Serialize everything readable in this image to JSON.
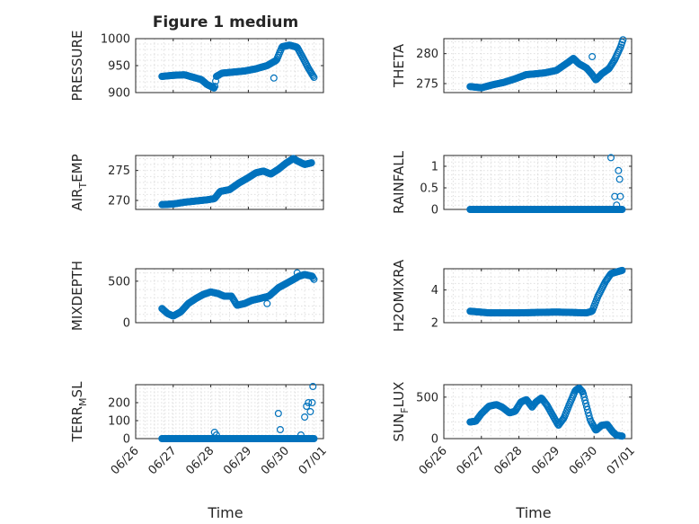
{
  "figure": {
    "title": "Figure 1 medium",
    "xlabel": "Time",
    "marker_color": "#0072bd",
    "grid_color": "#dfdfdf"
  },
  "x_axis": {
    "type": "time",
    "range": [
      "06/26",
      "07/01"
    ],
    "ticks": [
      "06/26",
      "06/27",
      "06/28",
      "06/29",
      "06/30",
      "07/01"
    ],
    "tick_values": [
      0,
      1,
      2,
      3,
      4,
      5
    ],
    "data_start_day": 0.7,
    "data_end_day": 4.75,
    "rotation_deg": -45
  },
  "chart_data": [
    {
      "type": "scatter",
      "ylabel": "PRESSURE",
      "title": "Figure 1 medium",
      "ylim": [
        900,
        1000
      ],
      "yticks": [
        900,
        950,
        1000
      ],
      "grid": true,
      "trend": [
        [
          0.7,
          930
        ],
        [
          1.0,
          932
        ],
        [
          1.3,
          933
        ],
        [
          1.5,
          929
        ],
        [
          1.75,
          924
        ],
        [
          1.9,
          915
        ],
        [
          2.1,
          908
        ],
        [
          2.15,
          930
        ],
        [
          2.3,
          936
        ],
        [
          2.6,
          938
        ],
        [
          2.9,
          940
        ],
        [
          3.2,
          944
        ],
        [
          3.5,
          950
        ],
        [
          3.75,
          960
        ],
        [
          3.9,
          985
        ],
        [
          4.1,
          988
        ],
        [
          4.3,
          984
        ],
        [
          4.45,
          965
        ],
        [
          4.6,
          945
        ],
        [
          4.75,
          928
        ]
      ],
      "outliers": [
        [
          3.68,
          927
        ]
      ]
    },
    {
      "type": "scatter",
      "ylabel": "THETA",
      "ylim": [
        273.5,
        282.5
      ],
      "yticks": [
        275,
        280
      ],
      "grid": true,
      "trend": [
        [
          0.7,
          274.5
        ],
        [
          1.0,
          274.3
        ],
        [
          1.3,
          274.8
        ],
        [
          1.6,
          275.2
        ],
        [
          1.9,
          275.8
        ],
        [
          2.2,
          276.5
        ],
        [
          2.4,
          276.6
        ],
        [
          2.7,
          276.8
        ],
        [
          3.0,
          277.2
        ],
        [
          3.3,
          278.5
        ],
        [
          3.45,
          279.2
        ],
        [
          3.6,
          278.3
        ],
        [
          3.8,
          277.6
        ],
        [
          3.95,
          276.5
        ],
        [
          4.05,
          275.6
        ],
        [
          4.2,
          276.6
        ],
        [
          4.4,
          277.5
        ],
        [
          4.55,
          279.0
        ],
        [
          4.7,
          281.0
        ],
        [
          4.78,
          282.5
        ]
      ],
      "outliers": [
        [
          3.95,
          279.5
        ]
      ]
    },
    {
      "type": "scatter",
      "ylabel": "AIR",
      "ylabel_sub": "T",
      "ylabel_tail": "EMP",
      "ylim": [
        268.5,
        277.5
      ],
      "yticks": [
        270,
        275
      ],
      "grid": true,
      "trend": [
        [
          0.7,
          269.3
        ],
        [
          1.0,
          269.4
        ],
        [
          1.3,
          269.7
        ],
        [
          1.6,
          269.9
        ],
        [
          1.9,
          270.1
        ],
        [
          2.1,
          270.3
        ],
        [
          2.25,
          271.5
        ],
        [
          2.5,
          271.8
        ],
        [
          2.75,
          272.9
        ],
        [
          3.0,
          273.8
        ],
        [
          3.2,
          274.6
        ],
        [
          3.4,
          274.9
        ],
        [
          3.6,
          274.4
        ],
        [
          3.8,
          275.2
        ],
        [
          4.0,
          276.2
        ],
        [
          4.2,
          277.0
        ],
        [
          4.3,
          276.6
        ],
        [
          4.5,
          276.0
        ],
        [
          4.7,
          276.3
        ]
      ],
      "outliers": []
    },
    {
      "type": "scatter",
      "ylabel": "RAINFALL",
      "ylim": [
        0,
        1.25
      ],
      "yticks": [
        0,
        0.5,
        1
      ],
      "grid": true,
      "trend": [
        [
          0.7,
          0
        ],
        [
          4.75,
          0
        ]
      ],
      "outliers": [
        [
          4.45,
          1.2
        ],
        [
          4.55,
          0.3
        ],
        [
          4.6,
          0.1
        ],
        [
          4.65,
          0.9
        ],
        [
          4.68,
          0.7
        ],
        [
          4.7,
          0.3
        ],
        [
          4.6,
          0
        ],
        [
          4.72,
          0
        ]
      ]
    },
    {
      "type": "scatter",
      "ylabel": "MIXDEPTH",
      "ylim": [
        0,
        650
      ],
      "yticks": [
        0,
        500
      ],
      "grid": true,
      "trend": [
        [
          0.7,
          170
        ],
        [
          0.85,
          110
        ],
        [
          1.0,
          80
        ],
        [
          1.2,
          130
        ],
        [
          1.4,
          230
        ],
        [
          1.6,
          290
        ],
        [
          1.8,
          340
        ],
        [
          2.0,
          370
        ],
        [
          2.2,
          350
        ],
        [
          2.35,
          320
        ],
        [
          2.55,
          320
        ],
        [
          2.7,
          210
        ],
        [
          2.9,
          230
        ],
        [
          3.1,
          270
        ],
        [
          3.3,
          290
        ],
        [
          3.55,
          320
        ],
        [
          3.8,
          420
        ],
        [
          4.0,
          470
        ],
        [
          4.2,
          520
        ],
        [
          4.35,
          560
        ],
        [
          4.5,
          580
        ],
        [
          4.7,
          560
        ],
        [
          4.75,
          520
        ]
      ],
      "outliers": [
        [
          3.5,
          230
        ],
        [
          4.3,
          600
        ]
      ]
    },
    {
      "type": "scatter",
      "ylabel": "H2OMIXRA",
      "ylim": [
        2,
        5.3
      ],
      "yticks": [
        2,
        4
      ],
      "grid": true,
      "trend": [
        [
          0.7,
          2.7
        ],
        [
          1.2,
          2.6
        ],
        [
          2.0,
          2.6
        ],
        [
          3.0,
          2.65
        ],
        [
          3.8,
          2.6
        ],
        [
          3.95,
          2.7
        ],
        [
          4.1,
          3.6
        ],
        [
          4.3,
          4.5
        ],
        [
          4.45,
          5.0
        ],
        [
          4.6,
          5.1
        ],
        [
          4.75,
          5.2
        ]
      ],
      "outliers": []
    },
    {
      "type": "scatter",
      "ylabel": "TERR",
      "ylabel_sub": "M",
      "ylabel_tail": "SL",
      "ylim": [
        0,
        300
      ],
      "yticks": [
        0,
        100,
        200
      ],
      "grid": true,
      "trend": [
        [
          0.7,
          0
        ],
        [
          4.75,
          0
        ]
      ],
      "outliers": [
        [
          2.1,
          35
        ],
        [
          2.15,
          20
        ],
        [
          3.8,
          140
        ],
        [
          3.85,
          50
        ],
        [
          4.4,
          20
        ],
        [
          4.5,
          120
        ],
        [
          4.55,
          180
        ],
        [
          4.6,
          200
        ],
        [
          4.65,
          150
        ],
        [
          4.7,
          200
        ],
        [
          4.72,
          290
        ]
      ]
    },
    {
      "type": "scatter",
      "ylabel": "SUN",
      "ylabel_sub": "F",
      "ylabel_tail": "LUX",
      "ylim": [
        0,
        650
      ],
      "yticks": [
        0,
        500
      ],
      "grid": true,
      "trend": [
        [
          0.7,
          200
        ],
        [
          0.85,
          210
        ],
        [
          1.0,
          300
        ],
        [
          1.2,
          390
        ],
        [
          1.4,
          410
        ],
        [
          1.55,
          380
        ],
        [
          1.75,
          310
        ],
        [
          1.9,
          330
        ],
        [
          2.05,
          440
        ],
        [
          2.2,
          470
        ],
        [
          2.35,
          380
        ],
        [
          2.45,
          440
        ],
        [
          2.6,
          490
        ],
        [
          2.75,
          400
        ],
        [
          2.9,
          280
        ],
        [
          3.05,
          160
        ],
        [
          3.2,
          250
        ],
        [
          3.35,
          420
        ],
        [
          3.5,
          580
        ],
        [
          3.6,
          610
        ],
        [
          3.7,
          560
        ],
        [
          3.8,
          390
        ],
        [
          3.9,
          220
        ],
        [
          4.05,
          100
        ],
        [
          4.2,
          160
        ],
        [
          4.35,
          170
        ],
        [
          4.5,
          80
        ],
        [
          4.6,
          40
        ],
        [
          4.75,
          30
        ]
      ],
      "outliers": []
    }
  ]
}
